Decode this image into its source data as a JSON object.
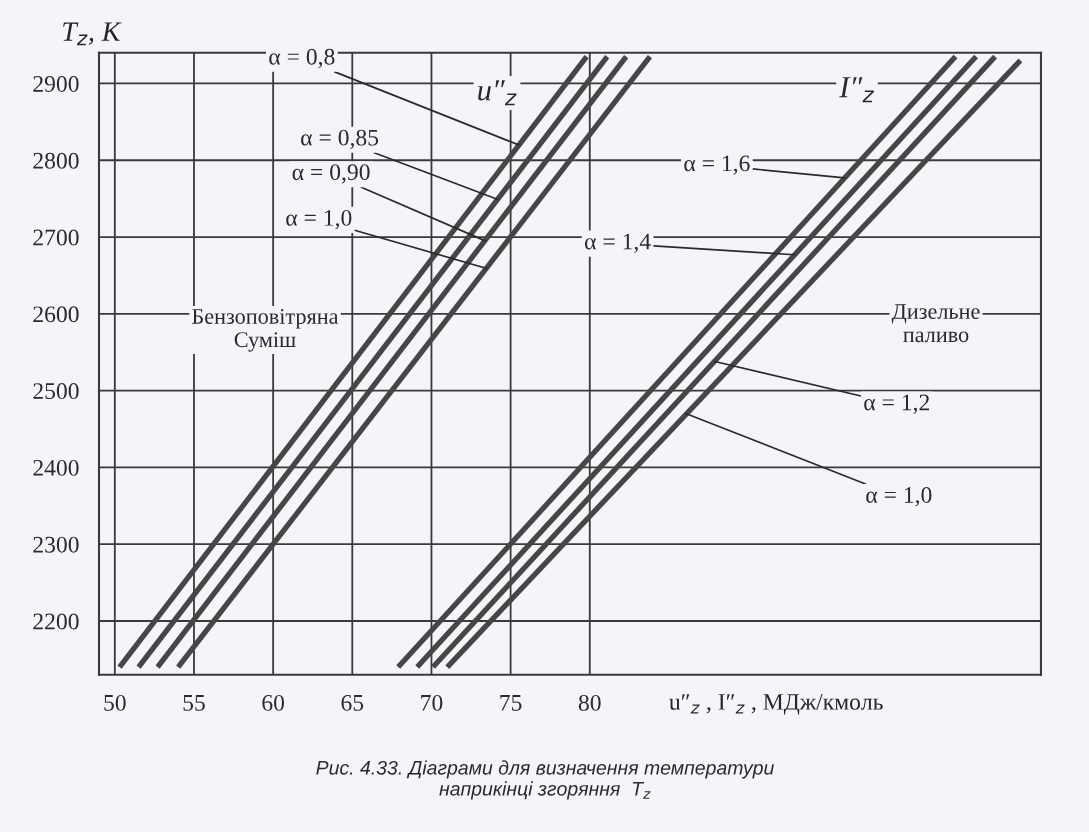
{
  "chart_data": {
    "type": "line",
    "ylabel": "T$_{z}$, K",
    "xlabel": "u″$_{z}$ , I″$_{z}$ , МДж/кмоль",
    "xlim": [
      49,
      108.5
    ],
    "xticks": [
      50,
      55,
      60,
      65,
      70,
      75,
      80
    ],
    "ylim": [
      2130,
      2940
    ],
    "yticks": [
      2200,
      2300,
      2400,
      2500,
      2600,
      2700,
      2800,
      2900
    ],
    "grid": true,
    "marker": "none",
    "line_style": "solid",
    "series": [
      {
        "color": "#4a4446",
        "x": [
          50.3,
          79.8
        ],
        "values": [
          2140,
          2935
        ]
      },
      {
        "color": "#4a4446",
        "x": [
          51.5,
          81.1
        ],
        "values": [
          2140,
          2935
        ]
      },
      {
        "color": "#4a4446",
        "x": [
          52.7,
          82.3
        ],
        "values": [
          2140,
          2935
        ]
      },
      {
        "color": "#4a4446",
        "x": [
          54.0,
          83.8
        ],
        "values": [
          2140,
          2935
        ]
      },
      {
        "color": "#4a4446",
        "x": [
          67.9,
          103.1
        ],
        "values": [
          2140,
          2935
        ]
      },
      {
        "color": "#4a4446",
        "x": [
          69.1,
          104.4
        ],
        "values": [
          2140,
          2935
        ]
      },
      {
        "color": "#4a4446",
        "x": [
          70.1,
          105.6
        ],
        "values": [
          2140,
          2935
        ]
      },
      {
        "color": "#4a4446",
        "x": [
          71.0,
          107.2
        ],
        "values": [
          2140,
          2930
        ]
      }
    ],
    "annotations": [
      {
        "text": "α = 0,8",
        "x": 75.5,
        "y": 2820
      },
      {
        "text": "α = 0,85",
        "x": 74.2,
        "y": 2749
      },
      {
        "text": "α = 0,90",
        "x": 73.4,
        "y": 2695
      },
      {
        "text": "α = 1,0",
        "x": 73.5,
        "y": 2659
      },
      {
        "text": "α = 1,6",
        "x": 96.1,
        "y": 2777
      },
      {
        "text": "α = 1,4",
        "x": 92.9,
        "y": 2677
      },
      {
        "text": "α = 1,2",
        "x": 87.9,
        "y": 2538
      },
      {
        "text": "α = 1,0",
        "x": 86.1,
        "y": 2470
      },
      "u″$_{z}$",
      "I″$_{z}$",
      "Бензоповітряна\nСуміш",
      "Дизельне\nпаливо",
      "Рис. 4.33. Діаграми для визначення температури\nнаприкінці згоряння  T$_{z}$"
    ]
  }
}
